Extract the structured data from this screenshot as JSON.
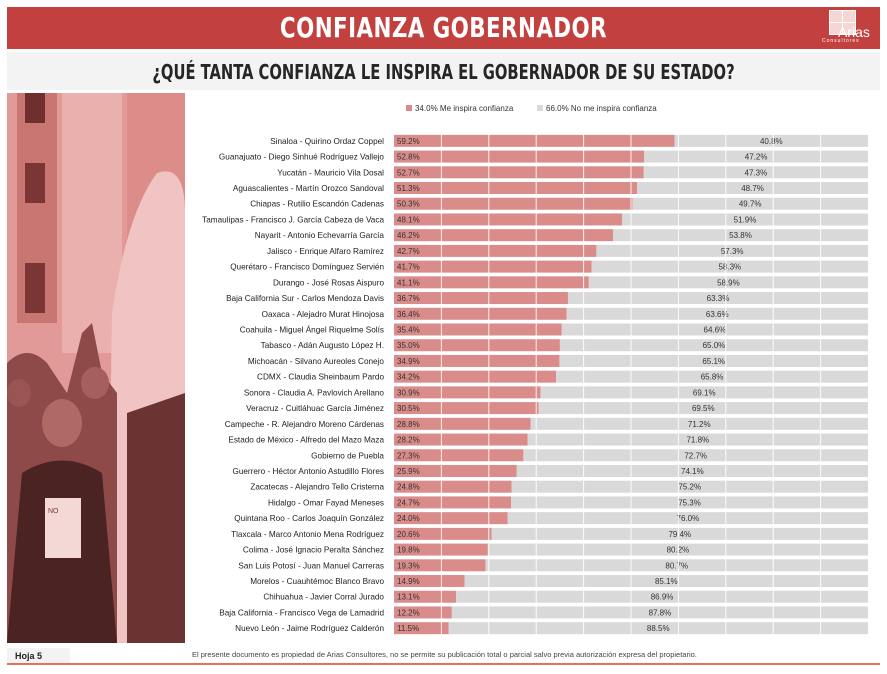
{
  "header": {
    "title": "CONFIANZA GOBERNADOR",
    "logo_text": "Arias",
    "logo_sub": "Consultores"
  },
  "question": "¿QUÉ TANTA CONFIANZA LE INSPIRA EL GOBERNADOR DE SU ESTADO?",
  "legend": {
    "items": [
      {
        "label": "34.0% Me inspira confianza",
        "color": "#d98c8a"
      },
      {
        "label": "66.0% No me inspira confianza",
        "color": "#d9d9d9"
      }
    ]
  },
  "colors": {
    "accent": "#c2413f",
    "confianza": "#d98c8a",
    "no_confianza": "#d9d9d9",
    "footer_line": "#e4725a"
  },
  "footer": {
    "page": "Hoja 5",
    "disclaimer": "El presente documento es propiedad de Arias Consultores, no se permite su publicación total o parcial salvo previa autorización expresa del propietario."
  },
  "chart_data": {
    "type": "bar",
    "orientation": "horizontal",
    "stacked": true,
    "xlim": [
      0,
      100
    ],
    "grid": true,
    "categories": [
      "Sinaloa - Quirino Ordaz Coppel",
      "Guanajuato - Diego Sinhué Rodríguez Vallejo",
      "Yucatán  - Mauricio Vila Dosal",
      "Aguascalientes - Martín Orozco Sandoval",
      "Chiapas - Rutilio Escandón Cadenas",
      "Tamaulipas - Francisco J. García Cabeza de Vaca",
      "Nayarit - Antonio Echevarría García",
      "Jalisco - Enrique Alfaro Ramírez",
      "Querétaro - Francisco Domínguez Servién",
      "Durango - José Rosas Aispuro",
      "Baja California Sur - Carlos Mendoza Davis",
      "Oaxaca  - Alejadro Murat Hinojosa",
      "Coahuila - Miguel Ángel Riquelme Solís",
      "Tabasco - Adán Augusto López H.",
      "Michoacán - Silvano Aureoles Conejo",
      "CDMX - Claudia Sheinbaum Pardo",
      "Sonora - Claudia A. Pavlovich Arellano",
      "Veracruz - Cuitláhuac García Jiménez",
      "Campeche - R. Alejandro Moreno Cárdenas",
      "Estado de México - Alfredo del Mazo Maza",
      "Gobierno de Puebla",
      "Guerrero - Héctor Antonio Astudillo Flores",
      "Zacatecas - Alejandro Tello Cristerna",
      "Hidalgo - Omar Fayad Meneses",
      "Quintana Roo - Carlos Joaquín González",
      "Tlaxcala - Marco Antonio Mena Rodríguez",
      "Colima - José Ignacio Peralta Sánchez",
      "San Luis Potosí - Juan Manuel Carreras",
      "Morelos - Cuauhtémoc Blanco Bravo",
      "Chihuahua - Javier Corral Jurado",
      "Baja California - Francisco Vega de Lamadrid",
      "Nuevo León  - Jaime Rodríguez Calderón"
    ],
    "series": [
      {
        "name": "Me inspira confianza",
        "values": [
          59.2,
          52.8,
          52.7,
          51.3,
          50.3,
          48.1,
          46.2,
          42.7,
          41.7,
          41.1,
          36.7,
          36.4,
          35.4,
          35.0,
          34.9,
          34.2,
          30.9,
          30.5,
          28.8,
          28.2,
          27.3,
          25.9,
          24.8,
          24.7,
          24.0,
          20.6,
          19.8,
          19.3,
          14.9,
          13.1,
          12.2,
          11.5
        ]
      },
      {
        "name": "No me inspira confianza",
        "values": [
          40.8,
          47.2,
          47.3,
          48.7,
          49.7,
          51.9,
          53.8,
          57.3,
          58.3,
          58.9,
          63.3,
          63.6,
          64.6,
          65.0,
          65.1,
          65.8,
          69.1,
          69.5,
          71.2,
          71.8,
          72.7,
          74.1,
          75.2,
          75.3,
          76.0,
          79.4,
          80.2,
          80.7,
          85.1,
          86.9,
          87.8,
          88.5
        ]
      }
    ]
  }
}
